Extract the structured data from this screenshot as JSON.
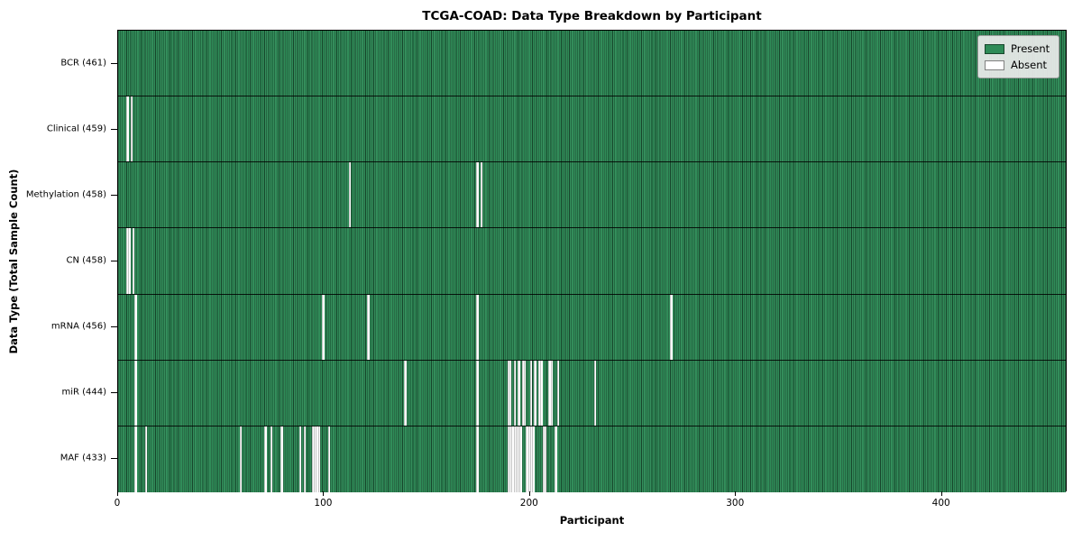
{
  "figure": {
    "title": "TCGA-COAD: Data Type Breakdown by Participant",
    "xlabel": "Participant",
    "ylabel": "Data Type (Total Sample Count)"
  },
  "chart_data": {
    "type": "heatmap",
    "title": "TCGA-COAD: Data Type Breakdown by Participant",
    "xlabel": "Participant",
    "ylabel": "Data Type (Total Sample Count)",
    "x_axis": {
      "ticks": [
        0,
        100,
        200,
        300,
        400
      ],
      "range": [
        0,
        461
      ]
    },
    "total_participants": 461,
    "grid": false,
    "legend_position": "upper right",
    "legend": [
      {
        "label": "Present",
        "color": "#2e8b57"
      },
      {
        "label": "Absent",
        "color": "#ffffff"
      }
    ],
    "rows": [
      {
        "data_type": "BCR",
        "label": "BCR (461)",
        "present_count": 461,
        "absent_participants": []
      },
      {
        "data_type": "Clinical",
        "label": "Clinical (459)",
        "present_count": 459,
        "absent_participants": [
          4,
          6
        ]
      },
      {
        "data_type": "Methylation",
        "label": "Methylation (458)",
        "present_count": 458,
        "absent_participants": [
          112,
          174,
          176
        ]
      },
      {
        "data_type": "CN",
        "label": "CN (458)",
        "present_count": 458,
        "absent_participants": [
          4,
          5,
          7
        ]
      },
      {
        "data_type": "mRNA",
        "label": "mRNA (456)",
        "present_count": 456,
        "absent_participants": [
          8,
          99,
          121,
          174,
          268
        ]
      },
      {
        "data_type": "miR",
        "label": "miR (444)",
        "present_count": 444,
        "absent_participants": [
          8,
          139,
          174,
          189,
          190,
          192,
          194,
          196,
          197,
          200,
          202,
          204,
          205,
          209,
          210,
          213,
          231
        ]
      },
      {
        "data_type": "MAF",
        "label": "MAF (433)",
        "present_count": 433,
        "absent_participants": [
          8,
          13,
          59,
          71,
          74,
          79,
          88,
          90,
          94,
          95,
          96,
          97,
          102,
          174,
          189,
          190,
          191,
          192,
          193,
          194,
          195,
          198,
          199,
          200,
          201,
          206,
          207,
          212
        ]
      }
    ]
  }
}
